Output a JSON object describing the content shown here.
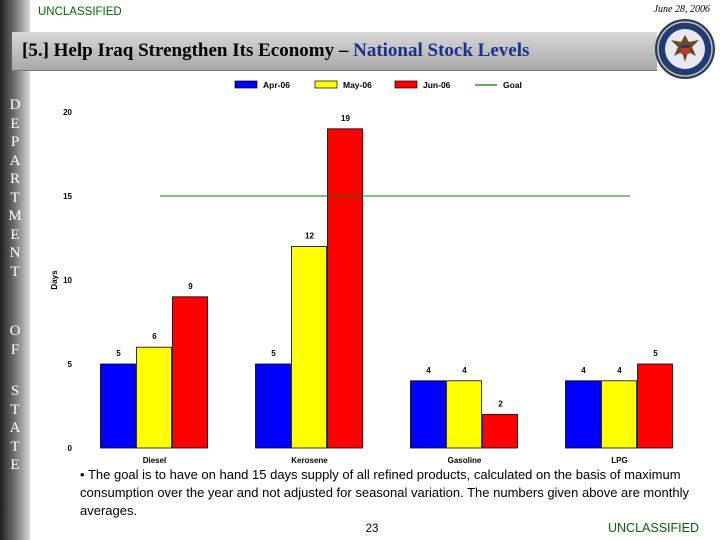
{
  "header": {
    "classification": "UNCLASSIFIED",
    "date": "June 28, 2006",
    "title_prefix": "[5.] Help Iraq Strengthen Its Economy – ",
    "title_highlight": "National Stock Levels"
  },
  "sidebar": {
    "words": [
      "DEPARTMENT",
      "OF",
      "STATE"
    ]
  },
  "chart_data": {
    "type": "bar",
    "categories": [
      "Diesel",
      "Kerosene",
      "Gasoline",
      "LPG"
    ],
    "series": [
      {
        "name": "Apr-06",
        "color": "#0000ff",
        "values": [
          5,
          5,
          4,
          4
        ]
      },
      {
        "name": "May-06",
        "color": "#ffff00",
        "values": [
          6,
          12,
          4,
          4
        ]
      },
      {
        "name": "Jun-06",
        "color": "#ff0000",
        "values": [
          9,
          19,
          2,
          5
        ]
      }
    ],
    "goal": {
      "name": "Goal",
      "value": 15,
      "color": "#008000"
    },
    "ylabel": "Days",
    "xlabel": "",
    "ylim": [
      0,
      20
    ],
    "yticks": [
      0,
      5,
      10,
      15,
      20
    ],
    "legend": "top",
    "grid": false
  },
  "footer": {
    "note": "The goal is to have on hand 15 days supply of all refined products, calculated on the basis of maximum consumption over the year and not adjusted for seasonal variation. The numbers given above are monthly averages.",
    "bullet": "•",
    "page_number": "23",
    "classification": "UNCLASSIFIED"
  },
  "colors": {
    "classification": "#006600",
    "title_highlight": "#1b2f8c"
  },
  "seal": {
    "icon": "state-department-seal-icon"
  }
}
